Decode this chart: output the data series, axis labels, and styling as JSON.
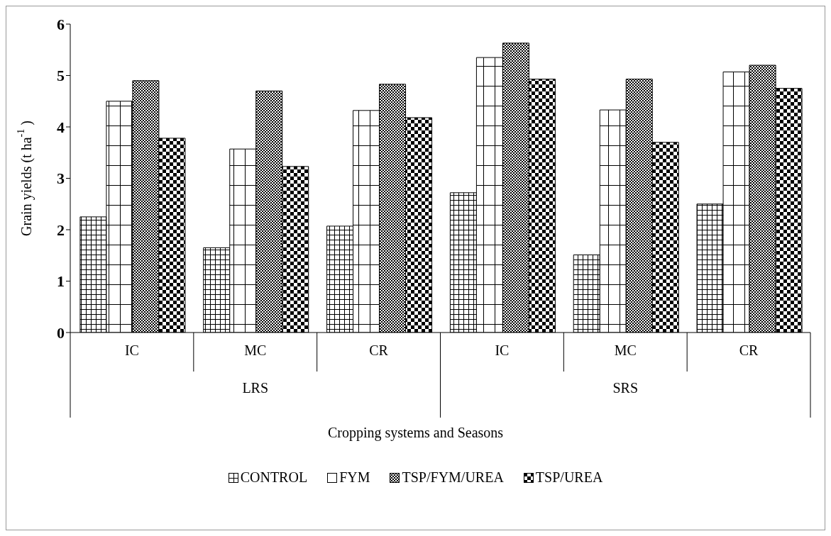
{
  "chart_data": {
    "type": "bar",
    "xlabel": "Cropping systems and Seasons",
    "ylabel": "Grain yields (t ha$^{-1}$)",
    "categories": [
      "IC",
      "MC",
      "CR",
      "IC",
      "MC",
      "CR"
    ],
    "annotations": [
      "LRS",
      "SRS"
    ],
    "series": [
      {
        "name": "CONTROL",
        "color": "#000000",
        "values": [
          2.25,
          1.65,
          2.07,
          2.72,
          1.51,
          2.5
        ]
      },
      {
        "name": "FYM",
        "color": "#000000",
        "values": [
          4.5,
          3.57,
          4.32,
          5.35,
          4.33,
          5.07
        ]
      },
      {
        "name": "TSP/FYM/UREA",
        "color": "#000000",
        "values": [
          4.9,
          4.7,
          4.83,
          5.63,
          4.93,
          5.2
        ]
      },
      {
        "name": "TSP/UREA",
        "color": "#000000",
        "values": [
          3.78,
          3.23,
          4.18,
          4.93,
          3.7,
          4.75
        ]
      }
    ],
    "ylim": [
      0,
      6
    ],
    "yticks": [
      0,
      1,
      2,
      3,
      4,
      5,
      6
    ],
    "grid": false,
    "legend": "bottom"
  }
}
